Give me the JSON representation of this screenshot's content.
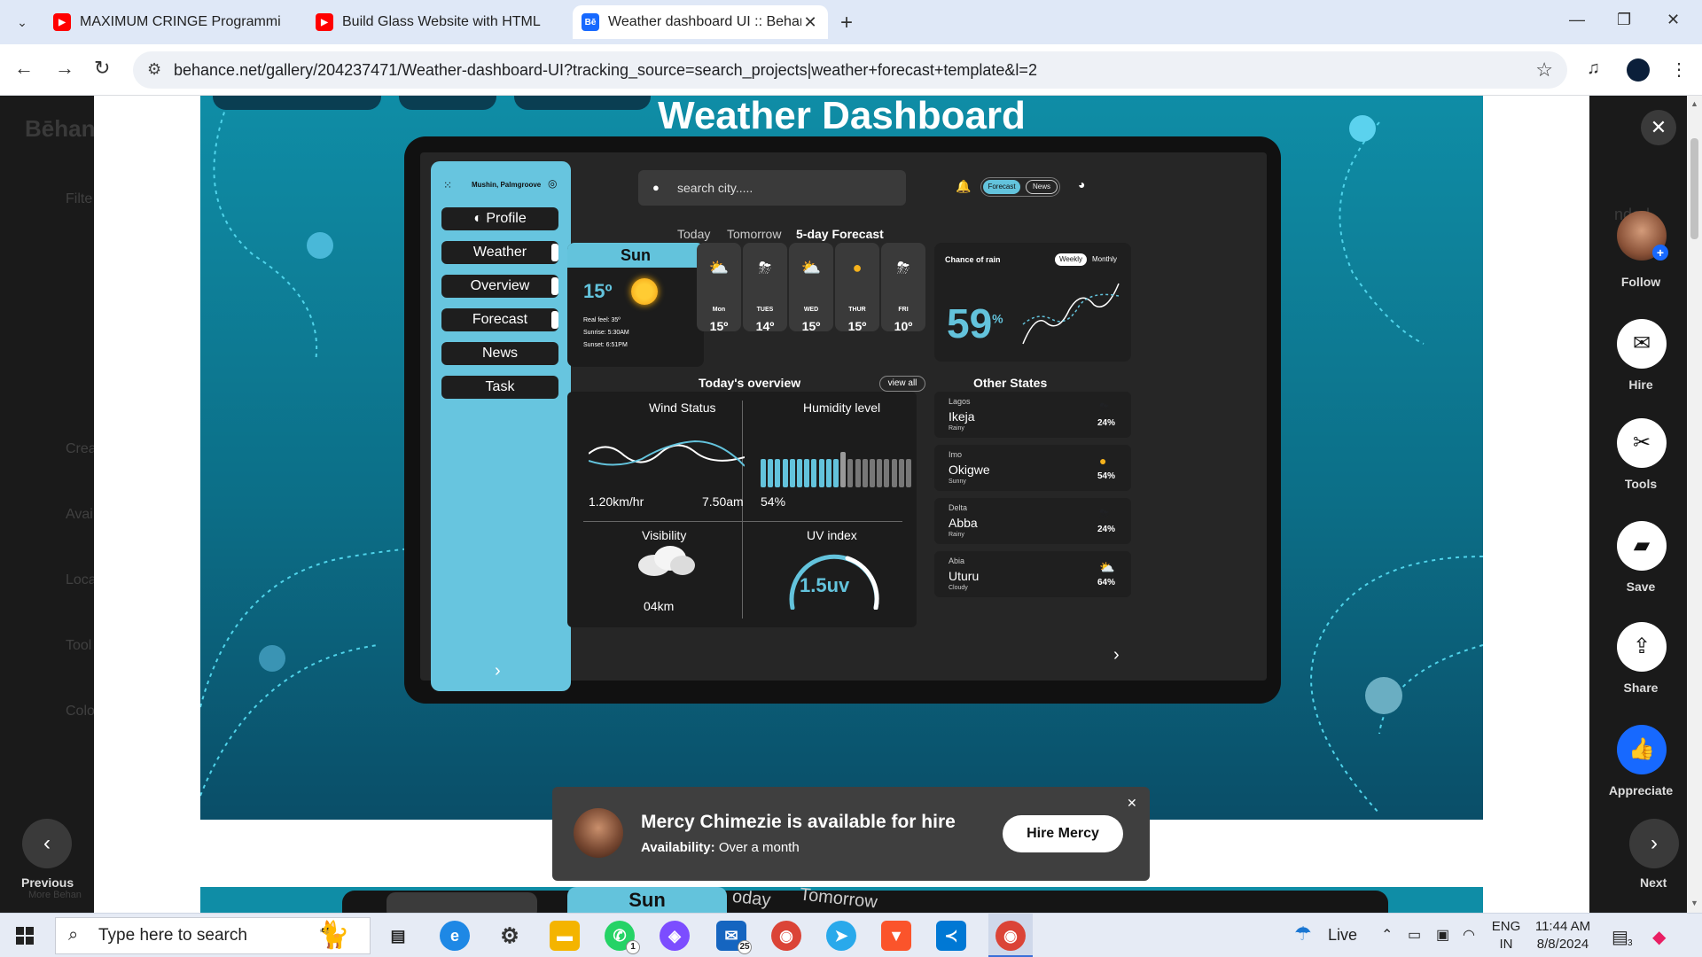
{
  "browser": {
    "tabs": [
      {
        "title": "MAXIMUM CRINGE Programmi",
        "icon": "youtube-icon"
      },
      {
        "title": "Build Glass Website with HTML",
        "icon": "youtube-icon"
      },
      {
        "title": "Weather dashboard UI :: Behan",
        "icon": "behance-icon"
      }
    ],
    "url": "behance.net/gallery/204237471/Weather-dashboard-UI?tracking_source=search_projects|weather+forecast+template&l=2"
  },
  "behance_bg": {
    "logo": "Bēhan",
    "items": [
      "Filte",
      "Crea",
      "Avai",
      "Loca",
      "Tool",
      "Colo"
    ],
    "more": "More Behan",
    "right_peek": "nded"
  },
  "dashboard": {
    "title": "Weather Dashboard",
    "location": "Mushin, Palmgroove",
    "search_placeholder": "search city.....",
    "toggle_on": "Forecast",
    "toggle_off": "News",
    "menu": [
      "Profile",
      "Weather",
      "Overview",
      "Forecast",
      "News",
      "Task"
    ],
    "forecast_tabs": [
      "Today",
      "Tomorrow",
      "5-day Forecast"
    ],
    "today": {
      "day": "Sun",
      "temp": "15º",
      "real_feel": "Real feel: 35º",
      "sunrise": "Sunrise: 5:30AM",
      "sunset": "Sunset: 6:51PM"
    },
    "days": [
      {
        "name": "Mon",
        "temp": "15º",
        "icon": "cloud-sun-icon"
      },
      {
        "name": "TUES",
        "temp": "14º",
        "icon": "storm-icon"
      },
      {
        "name": "WED",
        "temp": "15º",
        "icon": "cloud-sun-icon"
      },
      {
        "name": "THUR",
        "temp": "15º",
        "icon": "sun-icon"
      },
      {
        "name": "FRI",
        "temp": "10º",
        "icon": "storm-icon"
      }
    ],
    "rain": {
      "title": "Chance of rain",
      "weekly": "Weekly",
      "monthly": "Monthly",
      "value": "59",
      "unit": "%"
    },
    "overview": {
      "title": "Today's overview",
      "view_all": "view all",
      "wind_label": "Wind Status",
      "wind_speed": "1.20km/hr",
      "wind_time": "7.50am",
      "humidity_label": "Humidity level",
      "humidity_value": "54%",
      "humidity_level": 0.54,
      "visibility_label": "Visibility",
      "visibility_value": "04km",
      "uv_label": "UV index",
      "uv_value": "1.5uv"
    },
    "other_states_title": "Other States",
    "other_states": [
      {
        "state": "Lagos",
        "city": "Ikeja",
        "cond": "Rainy",
        "pct": "24%",
        "icon": "storm-icon"
      },
      {
        "state": "Imo",
        "city": "Okigwe",
        "cond": "Sunny",
        "pct": "54%",
        "icon": "sun-icon"
      },
      {
        "state": "Delta",
        "city": "Abba",
        "cond": "Rainy",
        "pct": "24%",
        "icon": "storm-icon"
      },
      {
        "state": "Abia",
        "city": "Uturu",
        "cond": "Cloudy",
        "pct": "64%",
        "icon": "cloud-sun-icon"
      }
    ],
    "peek": {
      "sun": "Sun",
      "today": "oday",
      "tomorrow": "Tomorrow"
    }
  },
  "hire": {
    "title": "Mercy Chimezie is available for hire",
    "availability_label": "Availability:",
    "availability_value": "Over a month",
    "button": "Hire Mercy"
  },
  "rail": {
    "follow": "Follow",
    "hire": "Hire",
    "tools": "Tools",
    "save": "Save",
    "share": "Share",
    "appreciate": "Appreciate",
    "previous": "Previous",
    "next": "Next"
  },
  "taskbar": {
    "search_placeholder": "Type here to search",
    "whatsapp_badge": "1",
    "mail_badge": "25",
    "weather": "Live",
    "lang1": "ENG",
    "lang2": "IN",
    "time": "11:44 AM",
    "date": "8/8/2024",
    "notif_badge": "3"
  },
  "colors": {
    "accent_blue": "#63c3dc",
    "behance_blue": "#1769ff"
  }
}
